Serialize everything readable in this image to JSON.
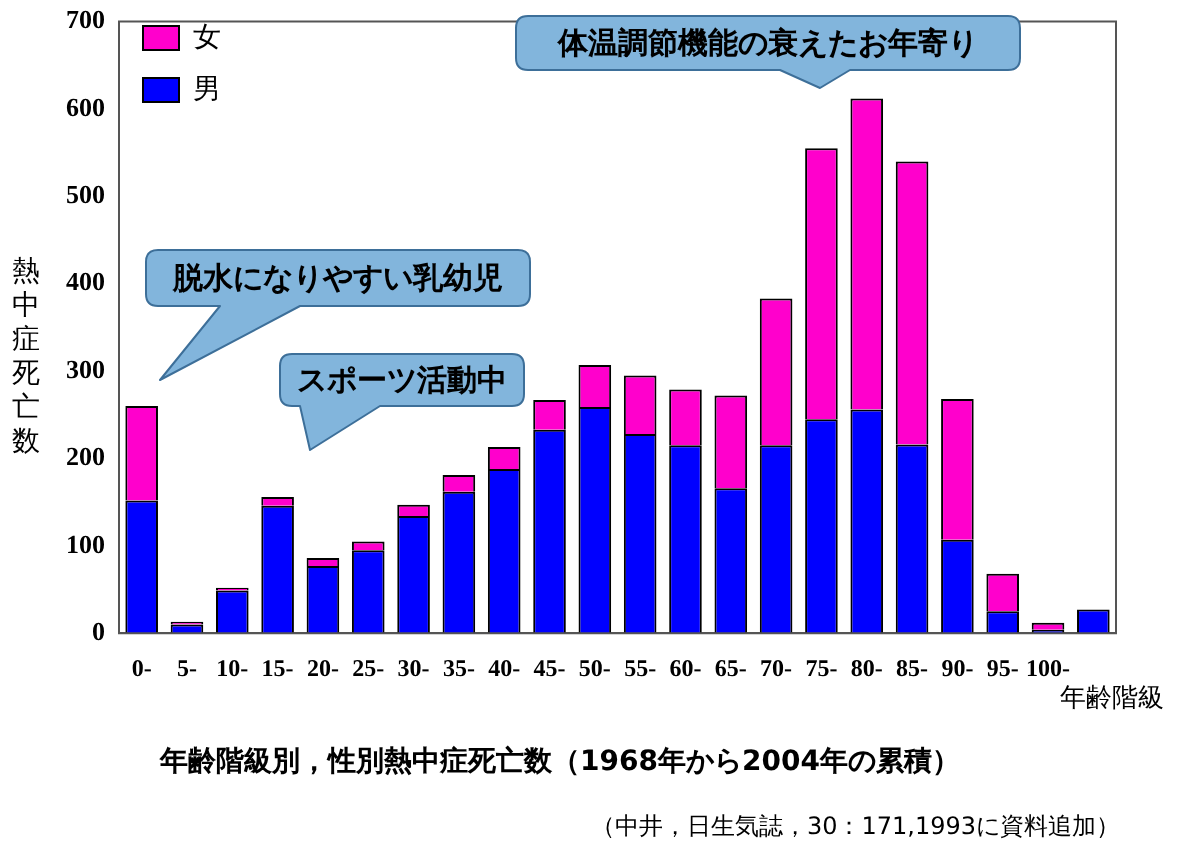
{
  "chart_data": {
    "type": "bar",
    "stacked": true,
    "title": "年齢階級別，性別熱中症死亡数（1968年から2004年の累積）",
    "xlabel": "年齢階級",
    "ylabel": "熱中症死亡数",
    "categories": [
      "0-",
      "5-",
      "10-",
      "15-",
      "20-",
      "25-",
      "30-",
      "35-",
      "40-",
      "45-",
      "50-",
      "55-",
      "60-",
      "65-",
      "70-",
      "75-",
      "80-",
      "85-",
      "90-",
      "95-",
      "100-",
      null
    ],
    "series": [
      {
        "name": "男",
        "color": "#0000ff",
        "values": [
          152,
          10,
          49,
          146,
          77,
          95,
          134,
          162,
          188,
          233,
          259,
          228,
          215,
          166,
          215,
          245,
          256,
          216,
          107,
          25,
          4,
          27
        ]
      },
      {
        "name": "女",
        "color": "#ff00cc",
        "values": [
          108,
          3,
          3,
          10,
          9,
          10,
          13,
          19,
          25,
          34,
          48,
          67,
          64,
          106,
          168,
          310,
          356,
          324,
          161,
          43,
          8,
          null
        ]
      }
    ],
    "ylim": [
      0,
      700
    ],
    "yticks": [
      0,
      100,
      200,
      300,
      400,
      500,
      600,
      700
    ],
    "grid": false,
    "legend": "top left",
    "annotations": [
      "脱水になりやすい乳幼児",
      "スポーツ活動中",
      "体温調節機能の衰えたお年寄り",
      "（中井，日生気誌，30：171,1993に資料追加）"
    ]
  }
}
